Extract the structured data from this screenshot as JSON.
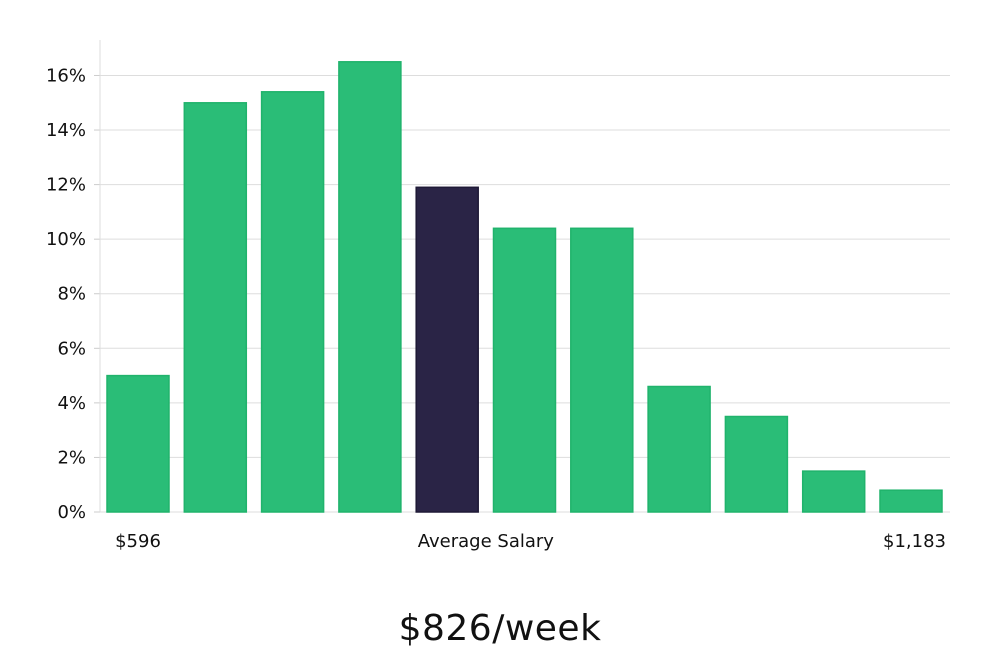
{
  "chart_data": {
    "type": "bar",
    "values": [
      5.0,
      15.0,
      15.4,
      16.5,
      11.9,
      10.4,
      10.4,
      4.6,
      3.5,
      1.5,
      0.8
    ],
    "highlight_index": 4,
    "ylim": [
      0,
      17.3
    ],
    "yticks": [
      0,
      2,
      4,
      6,
      8,
      10,
      12,
      14,
      16
    ],
    "ytick_suffix": "%",
    "grid": true,
    "x_annotations": {
      "left": "$596",
      "center": "Average Salary",
      "right": "$1,183"
    },
    "colors": {
      "bar": "#2abd77",
      "bar_edge": "#20b36c",
      "highlight": "#2a2446",
      "grid": "#dddddd",
      "axis": "#cccccc"
    }
  },
  "summary": "$826/week"
}
